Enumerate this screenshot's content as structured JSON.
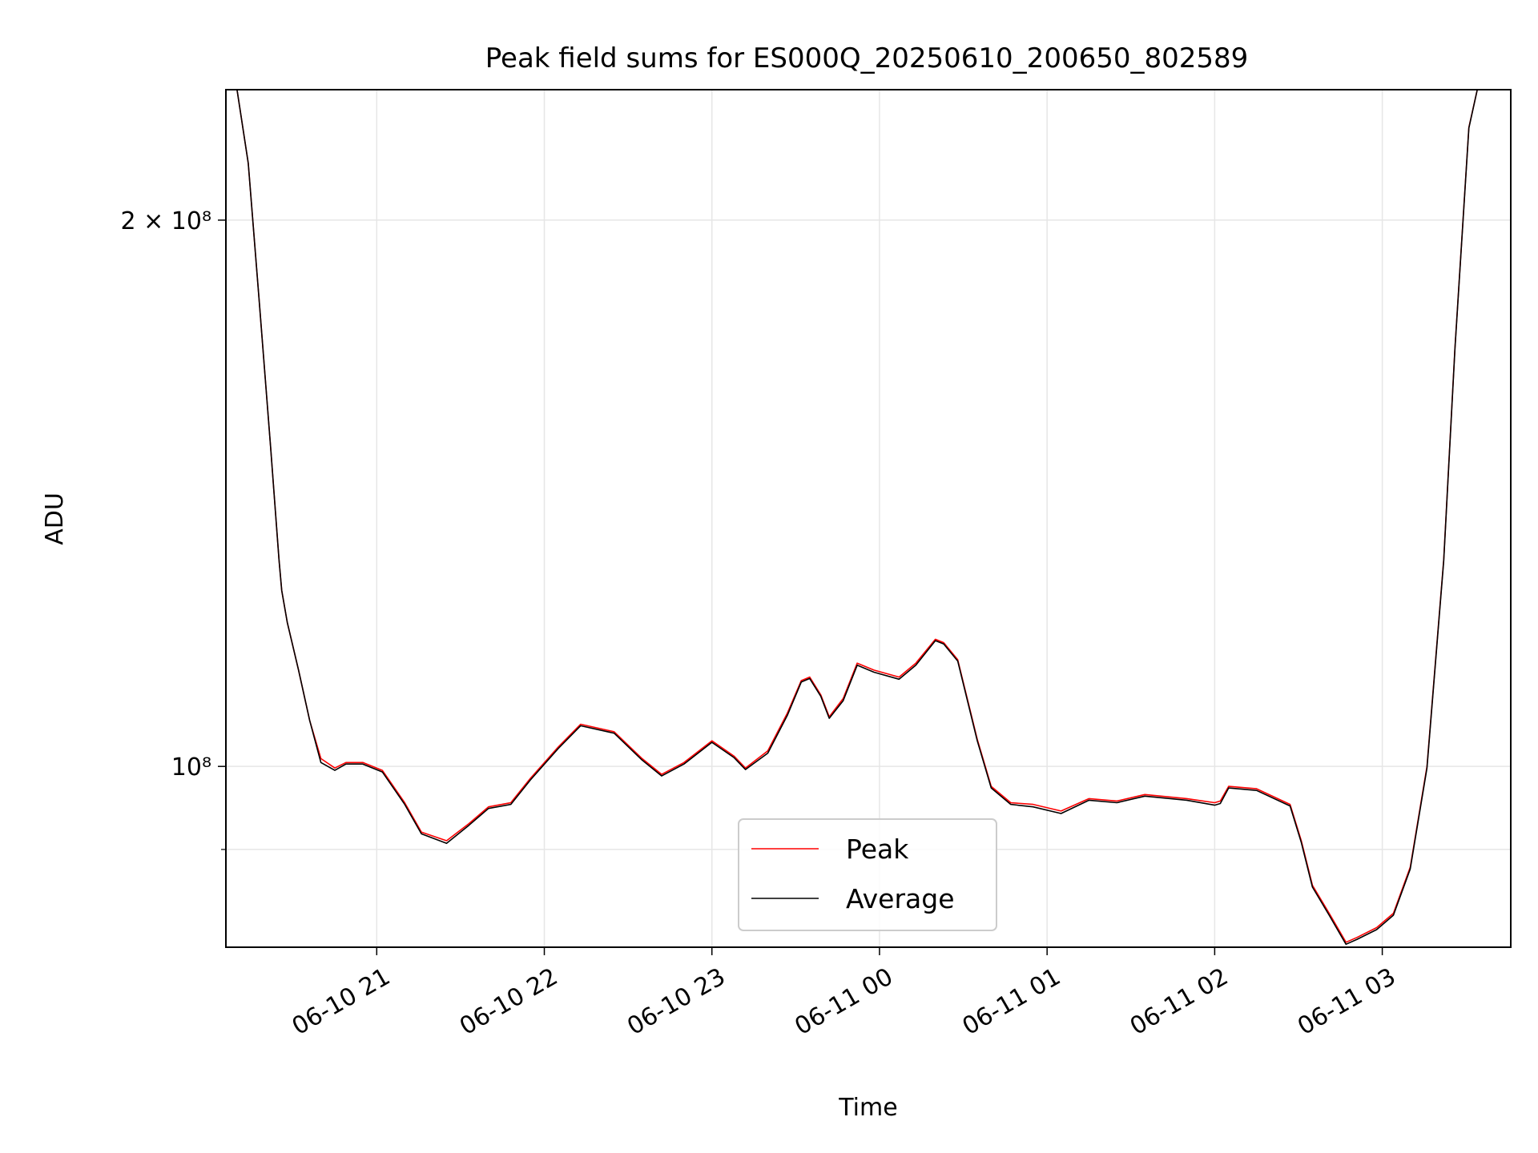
{
  "chart_data": {
    "type": "line",
    "title": "Peak field sums for ES000Q_20250610_200650_802589",
    "xlabel": "Time",
    "ylabel": "ADU",
    "y_scale": "log",
    "grid": true,
    "legend_position": "lower-center",
    "x_range": [
      "2025-06-10 20:06",
      "2025-06-11 03:46"
    ],
    "y_range": [
      79500000,
      236000000
    ],
    "x_ticks": [
      {
        "label": "06-10 21",
        "value": "2025-06-10 21:00"
      },
      {
        "label": "06-10 22",
        "value": "2025-06-10 22:00"
      },
      {
        "label": "06-10 23",
        "value": "2025-06-10 23:00"
      },
      {
        "label": "06-11 00",
        "value": "2025-06-11 00:00"
      },
      {
        "label": "06-11 01",
        "value": "2025-06-11 01:00"
      },
      {
        "label": "06-11 02",
        "value": "2025-06-11 02:00"
      },
      {
        "label": "06-11 03",
        "value": "2025-06-11 03:00"
      }
    ],
    "y_ticks": [
      {
        "label": "2 × 10⁸",
        "value": 200000000
      },
      {
        "label": "10⁸",
        "value": 100000000
      }
    ],
    "y_minor_ticks": [
      90000000
    ],
    "series": [
      {
        "name": "Peak",
        "color": "#ff0000",
        "points": [
          [
            "2025-06-10 20:06",
            236000000
          ],
          [
            "2025-06-10 20:10",
            236000000
          ],
          [
            "2025-06-10 20:14",
            215000000
          ],
          [
            "2025-06-10 20:18",
            180000000
          ],
          [
            "2025-06-10 20:22",
            150000000
          ],
          [
            "2025-06-10 20:25",
            130000000
          ],
          [
            "2025-06-10 20:26",
            125000000
          ],
          [
            "2025-06-10 20:28",
            120000000
          ],
          [
            "2025-06-10 20:32",
            113000000
          ],
          [
            "2025-06-10 20:36",
            106000000
          ],
          [
            "2025-06-10 20:40",
            101000000
          ],
          [
            "2025-06-10 20:45",
            99800000
          ],
          [
            "2025-06-10 20:49",
            100500000
          ],
          [
            "2025-06-10 20:55",
            100500000
          ],
          [
            "2025-06-10 21:02",
            99500000
          ],
          [
            "2025-06-10 21:10",
            95500000
          ],
          [
            "2025-06-10 21:16",
            92000000
          ],
          [
            "2025-06-10 21:25",
            91000000
          ],
          [
            "2025-06-10 21:33",
            93000000
          ],
          [
            "2025-06-10 21:40",
            95000000
          ],
          [
            "2025-06-10 21:48",
            95500000
          ],
          [
            "2025-06-10 21:55",
            98500000
          ],
          [
            "2025-06-10 22:05",
            102500000
          ],
          [
            "2025-06-10 22:13",
            105500000
          ],
          [
            "2025-06-10 22:25",
            104500000
          ],
          [
            "2025-06-10 22:35",
            101000000
          ],
          [
            "2025-06-10 22:42",
            99000000
          ],
          [
            "2025-06-10 22:50",
            100500000
          ],
          [
            "2025-06-10 23:00",
            103300000
          ],
          [
            "2025-06-10 23:08",
            101300000
          ],
          [
            "2025-06-10 23:12",
            99800000
          ],
          [
            "2025-06-10 23:20",
            102000000
          ],
          [
            "2025-06-10 23:27",
            107000000
          ],
          [
            "2025-06-10 23:32",
            111500000
          ],
          [
            "2025-06-10 23:35",
            112000000
          ],
          [
            "2025-06-10 23:39",
            109500000
          ],
          [
            "2025-06-10 23:42",
            106500000
          ],
          [
            "2025-06-10 23:47",
            109000000
          ],
          [
            "2025-06-10 23:52",
            114000000
          ],
          [
            "2025-06-10 23:58",
            113000000
          ],
          [
            "2025-06-11 00:07",
            112000000
          ],
          [
            "2025-06-11 00:13",
            114000000
          ],
          [
            "2025-06-11 00:20",
            117500000
          ],
          [
            "2025-06-11 00:23",
            117000000
          ],
          [
            "2025-06-11 00:28",
            114500000
          ],
          [
            "2025-06-11 00:35",
            103500000
          ],
          [
            "2025-06-11 00:40",
            97500000
          ],
          [
            "2025-06-11 00:47",
            95500000
          ],
          [
            "2025-06-11 00:55",
            95300000
          ],
          [
            "2025-06-11 01:05",
            94500000
          ],
          [
            "2025-06-11 01:15",
            96000000
          ],
          [
            "2025-06-11 01:25",
            95700000
          ],
          [
            "2025-06-11 01:35",
            96500000
          ],
          [
            "2025-06-11 01:50",
            96000000
          ],
          [
            "2025-06-11 02:00",
            95500000
          ],
          [
            "2025-06-11 02:02",
            95700000
          ],
          [
            "2025-06-11 02:05",
            97500000
          ],
          [
            "2025-06-11 02:15",
            97200000
          ],
          [
            "2025-06-11 02:27",
            95300000
          ],
          [
            "2025-06-11 02:31",
            91000000
          ],
          [
            "2025-06-11 02:35",
            86000000
          ],
          [
            "2025-06-11 02:41",
            83000000
          ],
          [
            "2025-06-11 02:47",
            80000000
          ],
          [
            "2025-06-11 02:51",
            80500000
          ],
          [
            "2025-06-11 02:58",
            81500000
          ],
          [
            "2025-06-11 03:04",
            83000000
          ],
          [
            "2025-06-11 03:10",
            88000000
          ],
          [
            "2025-06-11 03:16",
            100000000
          ],
          [
            "2025-06-11 03:22",
            130000000
          ],
          [
            "2025-06-11 03:26",
            170000000
          ],
          [
            "2025-06-11 03:31",
            225000000
          ],
          [
            "2025-06-11 03:34",
            236000000
          ],
          [
            "2025-06-11 03:46",
            236000000
          ]
        ]
      },
      {
        "name": "Average",
        "color": "#000000",
        "points": [
          [
            "2025-06-10 20:06",
            236000000
          ],
          [
            "2025-06-10 20:10",
            236000000
          ],
          [
            "2025-06-10 20:14",
            215000000
          ],
          [
            "2025-06-10 20:18",
            180000000
          ],
          [
            "2025-06-10 20:22",
            150000000
          ],
          [
            "2025-06-10 20:25",
            130000000
          ],
          [
            "2025-06-10 20:26",
            125000000
          ],
          [
            "2025-06-10 20:28",
            120000000
          ],
          [
            "2025-06-10 20:32",
            113000000
          ],
          [
            "2025-06-10 20:36",
            106000000
          ],
          [
            "2025-06-10 20:40",
            100500000
          ],
          [
            "2025-06-10 20:45",
            99500000
          ],
          [
            "2025-06-10 20:49",
            100300000
          ],
          [
            "2025-06-10 20:55",
            100300000
          ],
          [
            "2025-06-10 21:02",
            99300000
          ],
          [
            "2025-06-10 21:10",
            95300000
          ],
          [
            "2025-06-10 21:16",
            91800000
          ],
          [
            "2025-06-10 21:25",
            90700000
          ],
          [
            "2025-06-10 21:33",
            92800000
          ],
          [
            "2025-06-10 21:40",
            94800000
          ],
          [
            "2025-06-10 21:48",
            95300000
          ],
          [
            "2025-06-10 21:55",
            98300000
          ],
          [
            "2025-06-10 22:05",
            102300000
          ],
          [
            "2025-06-10 22:13",
            105300000
          ],
          [
            "2025-06-10 22:25",
            104300000
          ],
          [
            "2025-06-10 22:35",
            100800000
          ],
          [
            "2025-06-10 22:42",
            98800000
          ],
          [
            "2025-06-10 22:50",
            100300000
          ],
          [
            "2025-06-10 23:00",
            103100000
          ],
          [
            "2025-06-10 23:08",
            101100000
          ],
          [
            "2025-06-10 23:12",
            99600000
          ],
          [
            "2025-06-10 23:20",
            101700000
          ],
          [
            "2025-06-10 23:27",
            106700000
          ],
          [
            "2025-06-10 23:32",
            111300000
          ],
          [
            "2025-06-10 23:35",
            111800000
          ],
          [
            "2025-06-10 23:39",
            109300000
          ],
          [
            "2025-06-10 23:42",
            106300000
          ],
          [
            "2025-06-10 23:47",
            108700000
          ],
          [
            "2025-06-10 23:52",
            113700000
          ],
          [
            "2025-06-10 23:58",
            112700000
          ],
          [
            "2025-06-11 00:07",
            111700000
          ],
          [
            "2025-06-11 00:13",
            113700000
          ],
          [
            "2025-06-11 00:20",
            117300000
          ],
          [
            "2025-06-11 00:23",
            116800000
          ],
          [
            "2025-06-11 00:28",
            114300000
          ],
          [
            "2025-06-11 00:35",
            103300000
          ],
          [
            "2025-06-11 00:40",
            97300000
          ],
          [
            "2025-06-11 00:47",
            95300000
          ],
          [
            "2025-06-11 00:55",
            95000000
          ],
          [
            "2025-06-11 01:05",
            94200000
          ],
          [
            "2025-06-11 01:15",
            95800000
          ],
          [
            "2025-06-11 01:25",
            95500000
          ],
          [
            "2025-06-11 01:35",
            96300000
          ],
          [
            "2025-06-11 01:50",
            95800000
          ],
          [
            "2025-06-11 02:00",
            95200000
          ],
          [
            "2025-06-11 02:02",
            95400000
          ],
          [
            "2025-06-11 02:05",
            97300000
          ],
          [
            "2025-06-11 02:15",
            97000000
          ],
          [
            "2025-06-11 02:27",
            95100000
          ],
          [
            "2025-06-11 02:31",
            90800000
          ],
          [
            "2025-06-11 02:35",
            85800000
          ],
          [
            "2025-06-11 02:41",
            82800000
          ],
          [
            "2025-06-11 02:47",
            79800000
          ],
          [
            "2025-06-11 02:51",
            80300000
          ],
          [
            "2025-06-11 02:58",
            81300000
          ],
          [
            "2025-06-11 03:04",
            82800000
          ],
          [
            "2025-06-11 03:10",
            87800000
          ],
          [
            "2025-06-11 03:16",
            99800000
          ],
          [
            "2025-06-11 03:22",
            129800000
          ],
          [
            "2025-06-11 03:26",
            169800000
          ],
          [
            "2025-06-11 03:31",
            224800000
          ],
          [
            "2025-06-11 03:34",
            236000000
          ],
          [
            "2025-06-11 03:46",
            236000000
          ]
        ]
      }
    ]
  }
}
